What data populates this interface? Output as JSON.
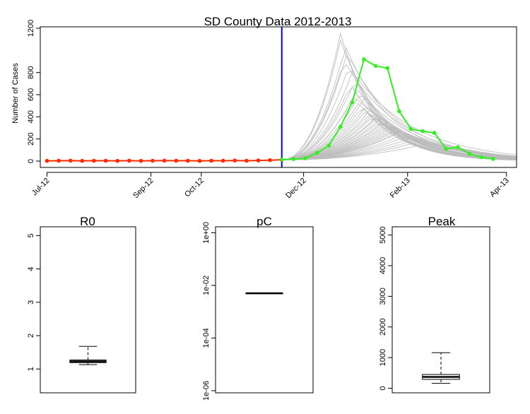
{
  "chart_data": [
    {
      "type": "line",
      "title": "SD County Data 2012-2013",
      "ylabel": "Number of Cases",
      "xlabel": "",
      "ylim": [
        0,
        1200
      ],
      "yticks": [
        0,
        200,
        400,
        600,
        800,
        1200
      ],
      "xlim": [
        "2012-06-27",
        "2013-04-07"
      ],
      "xticks": [
        {
          "label": "Jul-12",
          "date": "2012-07-01"
        },
        {
          "label": "Sep-12",
          "date": "2012-09-01"
        },
        {
          "label": "Oct-12",
          "date": "2012-10-01"
        },
        {
          "label": "Dec-12",
          "date": "2012-12-01"
        },
        {
          "label": "Feb-13",
          "date": "2013-02-01"
        },
        {
          "label": "Apr-13",
          "date": "2013-04-01"
        }
      ],
      "grid": false,
      "vline": {
        "date": "2012-11-18",
        "color": "#0000ff"
      },
      "colors": {
        "observed": "#ff2a00",
        "actual": "#33ee22",
        "simulations": "#bbbbbb"
      },
      "series": [
        {
          "role": "observed",
          "points": [
            [
              "2012-07-01",
              2
            ],
            [
              "2012-07-08",
              3
            ],
            [
              "2012-07-15",
              4
            ],
            [
              "2012-07-22",
              2
            ],
            [
              "2012-07-29",
              3
            ],
            [
              "2012-08-05",
              3
            ],
            [
              "2012-08-12",
              2
            ],
            [
              "2012-08-19",
              4
            ],
            [
              "2012-08-26",
              2
            ],
            [
              "2012-09-02",
              3
            ],
            [
              "2012-09-09",
              4
            ],
            [
              "2012-09-16",
              3
            ],
            [
              "2012-09-23",
              3
            ],
            [
              "2012-09-30",
              2
            ],
            [
              "2012-10-07",
              3
            ],
            [
              "2012-10-14",
              3
            ],
            [
              "2012-10-21",
              5
            ],
            [
              "2012-10-28",
              3
            ],
            [
              "2012-11-04",
              6
            ],
            [
              "2012-11-11",
              8
            ],
            [
              "2012-11-18",
              12
            ]
          ]
        },
        {
          "role": "actual",
          "points": [
            [
              "2012-11-18",
              15
            ],
            [
              "2012-11-25",
              18
            ],
            [
              "2012-12-02",
              25
            ],
            [
              "2012-12-09",
              75
            ],
            [
              "2012-12-16",
              140
            ],
            [
              "2012-12-23",
              310
            ],
            [
              "2012-12-30",
              530
            ],
            [
              "2013-01-06",
              920
            ],
            [
              "2013-01-13",
              860
            ],
            [
              "2013-01-20",
              840
            ],
            [
              "2013-01-27",
              450
            ],
            [
              "2013-02-03",
              290
            ],
            [
              "2013-02-10",
              270
            ],
            [
              "2013-02-17",
              255
            ],
            [
              "2013-02-24",
              110
            ],
            [
              "2013-03-03",
              125
            ],
            [
              "2013-03-10",
              65
            ],
            [
              "2013-03-17",
              35
            ],
            [
              "2013-03-24",
              20
            ]
          ]
        },
        {
          "role": "simulations",
          "start": "2012-11-18",
          "end": "2013-04-07",
          "start_value": 12,
          "runs": [
            {
              "peak_date": "2012-12-23",
              "peak": 1150
            },
            {
              "peak_date": "2012-12-23",
              "peak": 1090
            },
            {
              "peak_date": "2012-12-26",
              "peak": 1040
            },
            {
              "peak_date": "2012-12-27",
              "peak": 980
            },
            {
              "peak_date": "2012-12-25",
              "peak": 910
            },
            {
              "peak_date": "2012-12-28",
              "peak": 860
            },
            {
              "peak_date": "2012-12-30",
              "peak": 800
            },
            {
              "peak_date": "2013-01-01",
              "peak": 740
            },
            {
              "peak_date": "2012-12-29",
              "peak": 690
            },
            {
              "peak_date": "2013-01-02",
              "peak": 650
            },
            {
              "peak_date": "2013-01-04",
              "peak": 620
            },
            {
              "peak_date": "2012-12-31",
              "peak": 590
            },
            {
              "peak_date": "2013-01-06",
              "peak": 560
            },
            {
              "peak_date": "2013-01-03",
              "peak": 530
            },
            {
              "peak_date": "2013-01-08",
              "peak": 510
            },
            {
              "peak_date": "2013-01-05",
              "peak": 490
            },
            {
              "peak_date": "2013-01-10",
              "peak": 470
            },
            {
              "peak_date": "2013-01-07",
              "peak": 455
            },
            {
              "peak_date": "2013-01-12",
              "peak": 440
            },
            {
              "peak_date": "2013-01-09",
              "peak": 425
            },
            {
              "peak_date": "2013-01-14",
              "peak": 410
            },
            {
              "peak_date": "2013-01-11",
              "peak": 400
            },
            {
              "peak_date": "2013-01-16",
              "peak": 390
            },
            {
              "peak_date": "2013-01-13",
              "peak": 380
            },
            {
              "peak_date": "2013-01-18",
              "peak": 365
            },
            {
              "peak_date": "2013-01-15",
              "peak": 355
            },
            {
              "peak_date": "2013-01-20",
              "peak": 345
            },
            {
              "peak_date": "2013-01-17",
              "peak": 335
            },
            {
              "peak_date": "2013-01-22",
              "peak": 325
            },
            {
              "peak_date": "2013-01-19",
              "peak": 315
            },
            {
              "peak_date": "2013-01-24",
              "peak": 305
            },
            {
              "peak_date": "2013-01-21",
              "peak": 295
            },
            {
              "peak_date": "2013-01-26",
              "peak": 285
            },
            {
              "peak_date": "2013-01-23",
              "peak": 275
            },
            {
              "peak_date": "2013-01-28",
              "peak": 265
            },
            {
              "peak_date": "2013-01-25",
              "peak": 255
            },
            {
              "peak_date": "2013-01-30",
              "peak": 245
            },
            {
              "peak_date": "2013-02-01",
              "peak": 230
            },
            {
              "peak_date": "2013-02-04",
              "peak": 215
            },
            {
              "peak_date": "2013-02-07",
              "peak": 200
            },
            {
              "peak_date": "2013-02-10",
              "peak": 185
            },
            {
              "peak_date": "2013-02-14",
              "peak": 165
            }
          ]
        }
      ]
    },
    {
      "type": "box",
      "title": "R0",
      "scale": "linear",
      "ylim": [
        0.35,
        5.2
      ],
      "yticks": [
        {
          "v": 1,
          "label": "1"
        },
        {
          "v": 2,
          "label": "2"
        },
        {
          "v": 3,
          "label": "3"
        },
        {
          "v": 4,
          "label": "4"
        },
        {
          "v": 5,
          "label": "5"
        }
      ],
      "box": {
        "min": 1.13,
        "q1": 1.19,
        "median": 1.23,
        "q3": 1.27,
        "max": 1.68
      }
    },
    {
      "type": "box",
      "title": "pC",
      "scale": "log10",
      "ylim": [
        1e-06,
        1.4
      ],
      "yticks": [
        {
          "v": 1e-06,
          "label": "1e-06"
        },
        {
          "v": 0.0001,
          "label": "1e-04"
        },
        {
          "v": 0.01,
          "label": "1e-02"
        },
        {
          "v": 1,
          "label": "1e+00"
        }
      ],
      "box": {
        "min": 0.005,
        "q1": 0.005,
        "median": 0.005,
        "q3": 0.005,
        "max": 0.005
      }
    },
    {
      "type": "box",
      "title": "Peak",
      "scale": "linear",
      "ylim": [
        -80,
        5200
      ],
      "yticks": [
        {
          "v": 0,
          "label": "0"
        },
        {
          "v": 1000,
          "label": "1000"
        },
        {
          "v": 2000,
          "label": "2000"
        },
        {
          "v": 3000,
          "label": "3000"
        },
        {
          "v": 4000,
          "label": "4000"
        },
        {
          "v": 5000,
          "label": "5000"
        }
      ],
      "box": {
        "min": 160,
        "q1": 290,
        "median": 370,
        "q3": 450,
        "max": 1160
      }
    }
  ]
}
